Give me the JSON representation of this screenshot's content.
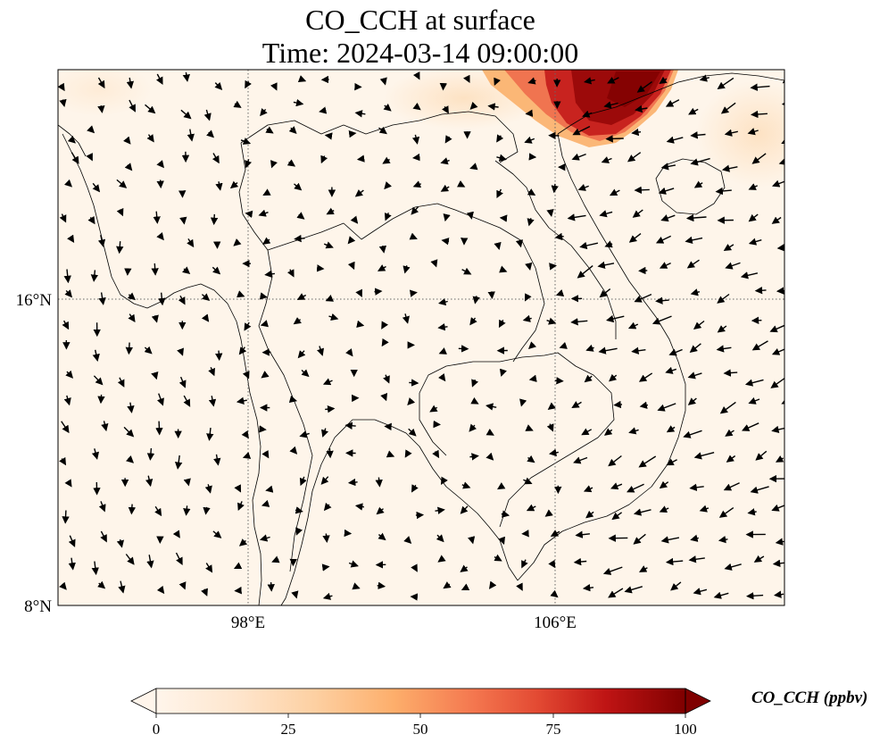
{
  "title": {
    "line1": "CO_CCH at surface",
    "line2": "Time: 2024-03-14 09:00:00"
  },
  "map": {
    "lat_labels": [
      "16°N",
      "8°N"
    ],
    "lon_labels": [
      "98°E",
      "106°E"
    ],
    "gridlines": "dotted",
    "field_background_color": "#fef5ea",
    "plume_colors": [
      "#fbb06a",
      "#f07450",
      "#c8231f",
      "#9c0a0a"
    ],
    "vector_field": "wind arrows"
  },
  "colorbar": {
    "label": "CO_CCH (ppbv)",
    "ticks": [
      "0",
      "25",
      "50",
      "75",
      "100"
    ],
    "min": 0,
    "max": 100,
    "extend": "both",
    "colormap": [
      "#fff5eb",
      "#fee6ce",
      "#fdd0a2",
      "#fdae6b",
      "#fd8d3c",
      "#f16913",
      "#e34a33",
      "#d7301f",
      "#b30000",
      "#7f0000"
    ]
  }
}
